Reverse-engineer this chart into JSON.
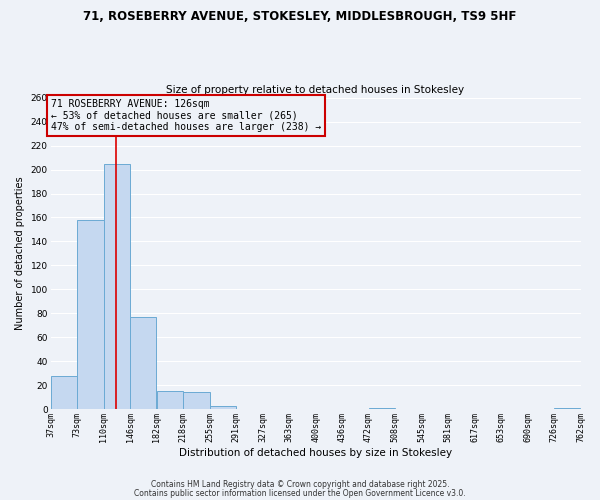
{
  "title_line1": "71, ROSEBERRY AVENUE, STOKESLEY, MIDDLESBROUGH, TS9 5HF",
  "title_line2": "Size of property relative to detached houses in Stokesley",
  "xlabel": "Distribution of detached houses by size in Stokesley",
  "ylabel": "Number of detached properties",
  "bar_edges": [
    37,
    73,
    110,
    146,
    182,
    218,
    255,
    291,
    327,
    363,
    400,
    436,
    472,
    508,
    545,
    581,
    617,
    653,
    690,
    726,
    762
  ],
  "bar_heights": [
    28,
    158,
    205,
    77,
    15,
    14,
    3,
    0,
    0,
    0,
    0,
    0,
    1,
    0,
    0,
    0,
    0,
    0,
    0,
    1
  ],
  "bar_color": "#c5d8f0",
  "bar_edge_color": "#6baad4",
  "property_size": 126,
  "vline_color": "#dd0000",
  "annotation_text": "71 ROSEBERRY AVENUE: 126sqm\n← 53% of detached houses are smaller (265)\n47% of semi-detached houses are larger (238) →",
  "annotation_box_color": "#cc0000",
  "annotation_text_color": "#000000",
  "ylim": [
    0,
    260
  ],
  "yticks": [
    0,
    20,
    40,
    60,
    80,
    100,
    120,
    140,
    160,
    180,
    200,
    220,
    240,
    260
  ],
  "tick_labels": [
    "37sqm",
    "73sqm",
    "110sqm",
    "146sqm",
    "182sqm",
    "218sqm",
    "255sqm",
    "291sqm",
    "327sqm",
    "363sqm",
    "400sqm",
    "436sqm",
    "472sqm",
    "508sqm",
    "545sqm",
    "581sqm",
    "617sqm",
    "653sqm",
    "690sqm",
    "726sqm",
    "762sqm"
  ],
  "footer_line1": "Contains HM Land Registry data © Crown copyright and database right 2025.",
  "footer_line2": "Contains public sector information licensed under the Open Government Licence v3.0.",
  "bg_color": "#eef2f8",
  "grid_color": "#ffffff",
  "title_fontsize": 8.5,
  "subtitle_fontsize": 7.5,
  "xlabel_fontsize": 7.5,
  "ylabel_fontsize": 7.0,
  "tick_fontsize": 6.0,
  "annot_fontsize": 7.0,
  "footer_fontsize": 5.5
}
